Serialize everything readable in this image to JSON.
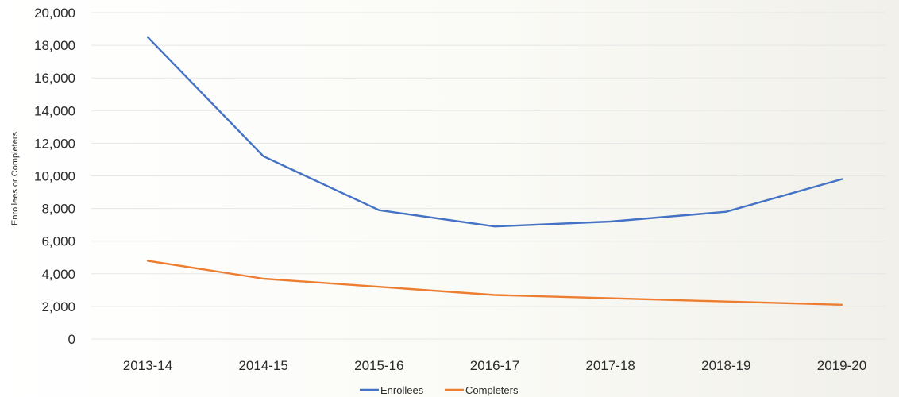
{
  "chart_data": {
    "type": "line",
    "title": "",
    "xlabel": "",
    "ylabel": "Enrollees or Completers",
    "categories": [
      "2013-14",
      "2014-15",
      "2015-16",
      "2016-17",
      "2017-18",
      "2018-19",
      "2019-20"
    ],
    "y_ticks": [
      "0",
      "2,000",
      "4,000",
      "6,000",
      "8,000",
      "10,000",
      "12,000",
      "14,000",
      "16,000",
      "18,000",
      "20,000"
    ],
    "ylim": [
      0,
      20000
    ],
    "grid": true,
    "legend_position": "bottom",
    "series": [
      {
        "name": "Enrollees",
        "color": "#4472c4",
        "values": [
          18500,
          11200,
          7900,
          6900,
          7200,
          7800,
          9800
        ]
      },
      {
        "name": "Completers",
        "color": "#ed7d31",
        "values": [
          4800,
          3700,
          3200,
          2700,
          2500,
          2300,
          2100
        ]
      }
    ]
  }
}
